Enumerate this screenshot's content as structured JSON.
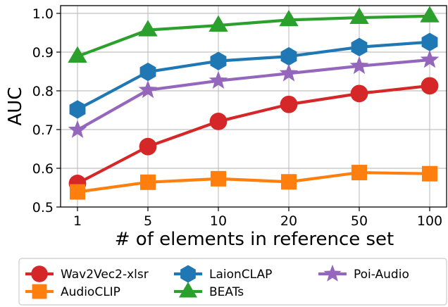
{
  "chart_data": {
    "type": "line",
    "categories": [
      "1",
      "5",
      "10",
      "20",
      "50",
      "100"
    ],
    "xlabel": "# of elements in reference set",
    "ylabel": "AUC",
    "ylim": [
      0.5,
      1.02
    ],
    "yticks": [
      "0.5",
      "0.6",
      "0.7",
      "0.8",
      "0.9",
      "1.0"
    ],
    "grid": true,
    "legend_position": "bottom",
    "series": [
      {
        "name": "Wav2Vec2-xlsr",
        "color": "#d62728",
        "marker": "circle",
        "values": [
          0.561,
          0.656,
          0.721,
          0.765,
          0.793,
          0.813
        ]
      },
      {
        "name": "AudioCLIP",
        "color": "#ff7f0e",
        "marker": "square",
        "values": [
          0.539,
          0.564,
          0.573,
          0.565,
          0.589,
          0.586
        ]
      },
      {
        "name": "LaionCLAP",
        "color": "#1f77b4",
        "marker": "hexagon",
        "values": [
          0.752,
          0.849,
          0.877,
          0.889,
          0.913,
          0.926
        ]
      },
      {
        "name": "BEATs",
        "color": "#2ca02c",
        "marker": "triangle",
        "values": [
          0.889,
          0.957,
          0.969,
          0.983,
          0.989,
          0.993
        ]
      },
      {
        "name": "Poi-Audio",
        "color": "#9467bd",
        "marker": "star",
        "values": [
          0.699,
          0.802,
          0.826,
          0.845,
          0.864,
          0.88
        ]
      }
    ]
  }
}
